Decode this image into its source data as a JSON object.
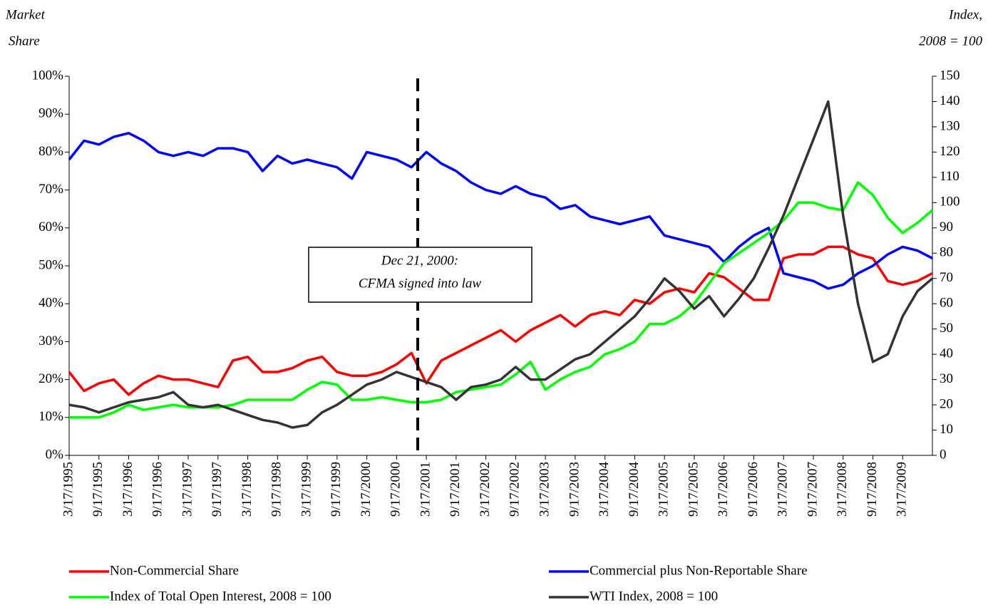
{
  "chart_data": {
    "type": "line",
    "ylabel": [
      "Market",
      "Share"
    ],
    "y2label": [
      "Index,",
      "2008 = 100"
    ],
    "annotation": [
      "Dec 21, 2000:",
      "CFMA signed into law"
    ],
    "categories": [
      "3/17/1995",
      null,
      "9/17/1995",
      null,
      "3/17/1996",
      null,
      "9/17/1996",
      null,
      "3/17/1997",
      null,
      "9/17/1997",
      null,
      "3/17/1998",
      null,
      "9/17/1998",
      null,
      "3/17/1999",
      null,
      "9/17/1999",
      null,
      "3/17/2000",
      null,
      "9/17/2000",
      null,
      "3/17/2001",
      null,
      "9/17/2001",
      null,
      "3/17/2002",
      null,
      "9/17/2002",
      null,
      "3/17/2003",
      null,
      "9/17/2003",
      null,
      "3/17/2004",
      null,
      "9/17/2004",
      null,
      "3/17/2005",
      null,
      "9/17/2005",
      null,
      "3/17/2006",
      null,
      "9/17/2006",
      null,
      "3/17/2007",
      null,
      "9/17/2007",
      null,
      "3/17/2008",
      null,
      "9/17/2008",
      null,
      "3/17/2009",
      null,
      null
    ],
    "ylim": [
      0,
      100
    ],
    "yticks": [
      {
        "value": 0,
        "label": "0%"
      },
      {
        "value": 10,
        "label": "10%"
      },
      {
        "value": 20,
        "label": "20%"
      },
      {
        "value": 30,
        "label": "30%"
      },
      {
        "value": 40,
        "label": "40%"
      },
      {
        "value": 50,
        "label": "50%"
      },
      {
        "value": 60,
        "label": "60%"
      },
      {
        "value": 70,
        "label": "70%"
      },
      {
        "value": 80,
        "label": "80%"
      },
      {
        "value": 90,
        "label": "90%"
      },
      {
        "value": 100,
        "label": "100%"
      }
    ],
    "y2lim": [
      0,
      150
    ],
    "y2ticks": [
      0,
      10,
      20,
      30,
      40,
      50,
      60,
      70,
      80,
      90,
      100,
      110,
      120,
      130,
      140,
      150
    ],
    "series": [
      {
        "name": "Non-Commercial Share",
        "color": "#ff0000",
        "values": [
          22,
          17,
          19,
          20,
          16,
          19,
          21,
          20,
          20,
          19,
          18,
          25,
          26,
          22,
          22,
          23,
          25,
          26,
          22,
          21,
          21,
          22,
          24,
          27,
          19,
          25,
          27,
          29,
          31,
          33,
          30,
          33,
          35,
          37,
          34,
          37,
          38,
          37,
          41,
          40,
          43,
          44,
          43,
          48,
          47,
          44,
          41,
          41,
          52,
          53,
          53,
          55,
          55,
          53,
          52,
          46,
          45,
          46,
          48
        ]
      },
      {
        "name": "Commercial plus Non-Reportable Share",
        "color": "#0000ff",
        "values": [
          78,
          83,
          82,
          84,
          85,
          83,
          80,
          79,
          80,
          79,
          81,
          81,
          80,
          75,
          79,
          77,
          78,
          77,
          76,
          73,
          80,
          79,
          78,
          76,
          80,
          77,
          75,
          72,
          70,
          69,
          71,
          69,
          68,
          65,
          66,
          63,
          62,
          61,
          62,
          63,
          58,
          57,
          56,
          55,
          51,
          55,
          58,
          60,
          48,
          47,
          46,
          44,
          45,
          48,
          50,
          53,
          55,
          54,
          52
        ]
      },
      {
        "name": "Index of Total Open Interest, 2008 = 100",
        "color": "#00ff00",
        "axis": "y2",
        "values": [
          15,
          15,
          15,
          17,
          20,
          18,
          19,
          20,
          19,
          19,
          19,
          20,
          22,
          22,
          22,
          22,
          26,
          29,
          28,
          22,
          22,
          23,
          22,
          21,
          21,
          22,
          25,
          26,
          27,
          28,
          32,
          37,
          26,
          30,
          33,
          35,
          40,
          42,
          45,
          52,
          52,
          55,
          60,
          68,
          76,
          80,
          84,
          88,
          93,
          100,
          100,
          98,
          97,
          108,
          103,
          94,
          88,
          92,
          97
        ]
      },
      {
        "name": "WTI Index, 2008 = 100",
        "color": "#333333",
        "axis": "y2",
        "values": [
          20,
          19,
          17,
          19,
          21,
          22,
          23,
          25,
          20,
          19,
          20,
          18,
          16,
          14,
          13,
          11,
          12,
          17,
          20,
          24,
          28,
          30,
          33,
          31,
          29,
          27,
          22,
          27,
          28,
          30,
          35,
          30,
          30,
          34,
          38,
          40,
          45,
          50,
          55,
          62,
          70,
          65,
          58,
          63,
          55,
          62,
          70,
          82,
          95,
          110,
          125,
          140,
          95,
          60,
          37,
          40,
          55,
          65,
          70
        ]
      }
    ]
  }
}
